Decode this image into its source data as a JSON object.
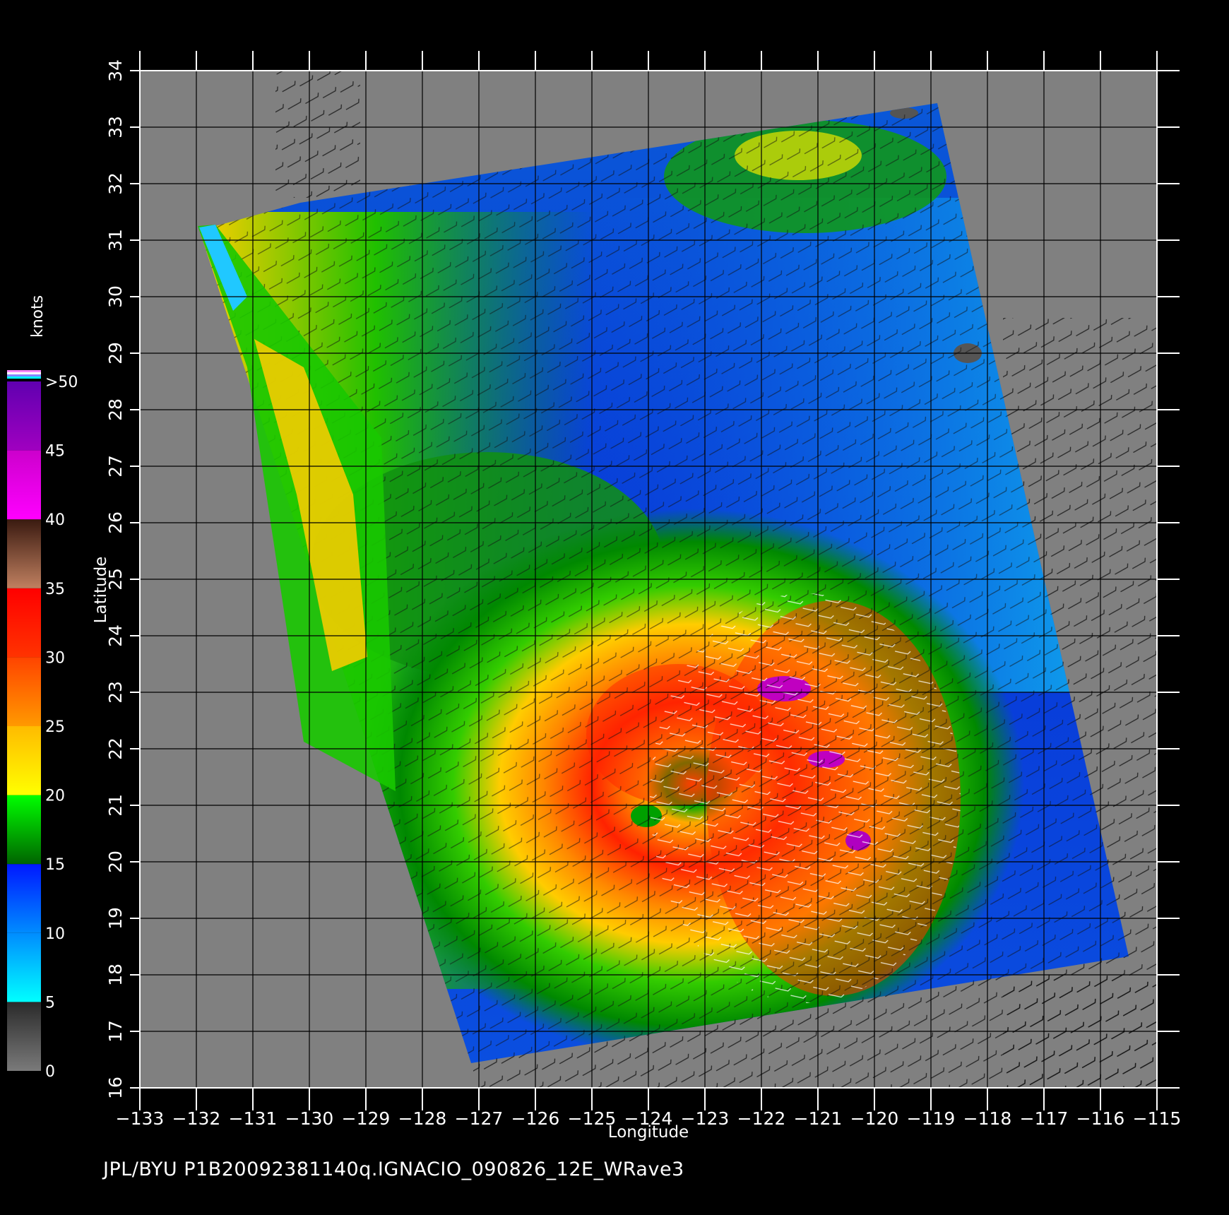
{
  "axes": {
    "xlabel": "Longitude",
    "ylabel": "Latitude",
    "xlim": [
      -133,
      -115
    ],
    "ylim": [
      16,
      34
    ],
    "xticks": [
      -133,
      -132,
      -131,
      -130,
      -129,
      -128,
      -127,
      -126,
      -125,
      -124,
      -123,
      -122,
      -121,
      -120,
      -119,
      -118,
      -117,
      -116,
      -115
    ],
    "yticks": [
      16,
      17,
      18,
      19,
      20,
      21,
      22,
      23,
      24,
      25,
      26,
      27,
      28,
      29,
      30,
      31,
      32,
      33,
      34
    ],
    "grid": true
  },
  "colorbar": {
    "title": "knots",
    "labels": [
      "0",
      "5",
      "10",
      "15",
      "20",
      "25",
      "30",
      "35",
      "40",
      "45",
      ">50"
    ],
    "bands": [
      {
        "from": 0,
        "to": 5,
        "color": "#7a7a7a",
        "color2": "#2a2a2a"
      },
      {
        "from": 5,
        "to": 10,
        "color": "#00ffff",
        "color2": "#008cff"
      },
      {
        "from": 10,
        "to": 15,
        "color": "#008cff",
        "color2": "#0018ff"
      },
      {
        "from": 15,
        "to": 20,
        "color": "#006400",
        "color2": "#00ff00"
      },
      {
        "from": 20,
        "to": 25,
        "color": "#ffff00",
        "color2": "#ffbb00"
      },
      {
        "from": 25,
        "to": 30,
        "color": "#ff9900",
        "color2": "#ff4400"
      },
      {
        "from": 30,
        "to": 35,
        "color": "#ff3300",
        "color2": "#ff0000"
      },
      {
        "from": 35,
        "to": 40,
        "color": "#c08060",
        "color2": "#3a1a10"
      },
      {
        "from": 40,
        "to": 45,
        "color": "#ff00ff",
        "color2": "#cc00cc"
      },
      {
        "from": 45,
        "to": 50,
        "color": "#a000c0",
        "color2": "#6000b0"
      }
    ]
  },
  "colors": {
    "land_nodata": "#808080",
    "background": "#000000",
    "grid_line": "#000000",
    "vector_black": "#111111",
    "vector_white": "#ffffff"
  },
  "storm": {
    "name": "IGNACIO",
    "center_lon": -123.9,
    "center_lat": 20.9
  },
  "footer_text": "JPL/BYU  P1B20092381140q.IGNACIO_090826_12E_WRave3"
}
